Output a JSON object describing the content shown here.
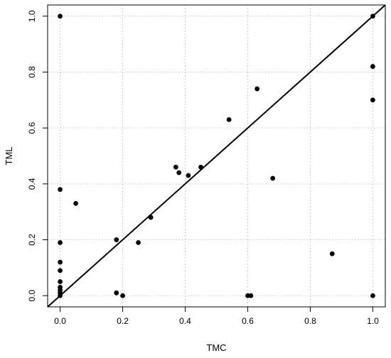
{
  "chart_data": {
    "type": "scatter",
    "title": "",
    "xlabel": "TMC",
    "ylabel": "TML",
    "xlim": [
      -0.04,
      1.04
    ],
    "ylim": [
      -0.04,
      1.04
    ],
    "xticks": [
      0.0,
      0.2,
      0.4,
      0.6,
      0.8,
      1.0
    ],
    "yticks": [
      0.0,
      0.2,
      0.4,
      0.6,
      0.8,
      1.0
    ],
    "xtick_labels": [
      "0.0",
      "0.2",
      "0.4",
      "0.6",
      "0.8",
      "1.0"
    ],
    "ytick_labels": [
      "0.0",
      "0.2",
      "0.4",
      "0.6",
      "0.8",
      "1.0"
    ],
    "grid": true,
    "reference_line": {
      "type": "identity",
      "from": [
        0,
        0
      ],
      "to": [
        1,
        1
      ]
    },
    "points": [
      {
        "x": 0.0,
        "y": 1.0
      },
      {
        "x": 0.0,
        "y": 0.38
      },
      {
        "x": 0.0,
        "y": 0.19
      },
      {
        "x": 0.0,
        "y": 0.12
      },
      {
        "x": 0.0,
        "y": 0.09
      },
      {
        "x": 0.0,
        "y": 0.05
      },
      {
        "x": 0.0,
        "y": 0.03
      },
      {
        "x": 0.0,
        "y": 0.02
      },
      {
        "x": 0.0,
        "y": 0.01
      },
      {
        "x": 0.0,
        "y": 0.0
      },
      {
        "x": 0.05,
        "y": 0.33
      },
      {
        "x": 0.18,
        "y": 0.2
      },
      {
        "x": 0.18,
        "y": 0.01
      },
      {
        "x": 0.2,
        "y": 0.0
      },
      {
        "x": 0.25,
        "y": 0.19
      },
      {
        "x": 0.29,
        "y": 0.28
      },
      {
        "x": 0.37,
        "y": 0.46
      },
      {
        "x": 0.38,
        "y": 0.44
      },
      {
        "x": 0.41,
        "y": 0.43
      },
      {
        "x": 0.45,
        "y": 0.46
      },
      {
        "x": 0.54,
        "y": 0.63
      },
      {
        "x": 0.6,
        "y": 0.0
      },
      {
        "x": 0.61,
        "y": 0.0
      },
      {
        "x": 0.63,
        "y": 0.74
      },
      {
        "x": 0.68,
        "y": 0.42
      },
      {
        "x": 0.87,
        "y": 0.15
      },
      {
        "x": 1.0,
        "y": 1.0
      },
      {
        "x": 1.0,
        "y": 0.82
      },
      {
        "x": 1.0,
        "y": 0.7
      },
      {
        "x": 1.0,
        "y": 0.0
      }
    ]
  }
}
